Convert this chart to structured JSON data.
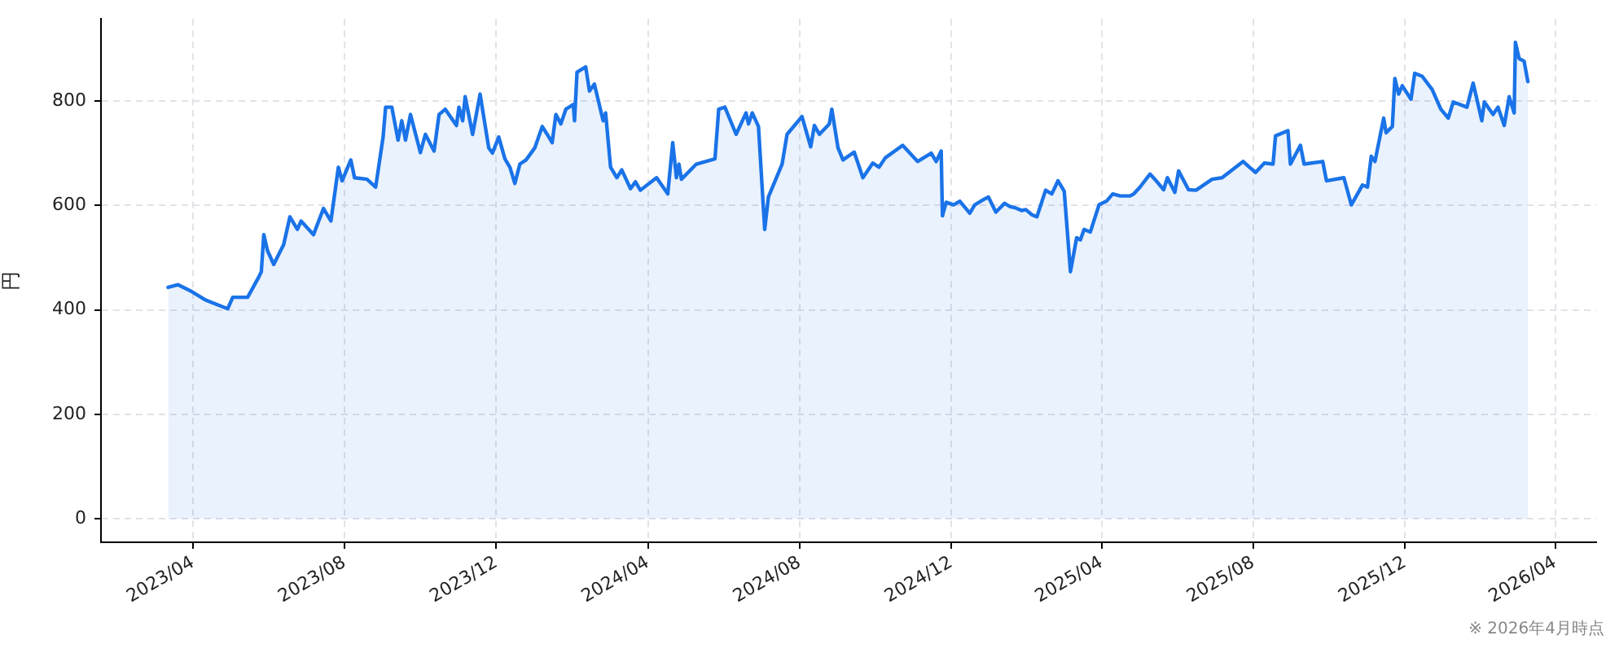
{
  "chart_data": {
    "type": "area",
    "ylabel": "円",
    "color": "#1a73e8",
    "x": [
      "2023-03-12",
      "2023-03-20",
      "2023-03-31",
      "2023-04-11",
      "2023-04-29",
      "2023-05-03",
      "2023-05-15",
      "2023-05-24",
      "2023-05-26",
      "2023-05-28",
      "2023-05-31",
      "2023-06-05",
      "2023-06-13",
      "2023-06-18",
      "2023-06-24",
      "2023-06-27",
      "2023-07-07",
      "2023-07-15",
      "2023-07-21",
      "2023-07-27",
      "2023-07-30",
      "2023-08-06",
      "2023-08-09",
      "2023-08-19",
      "2023-08-26",
      "2023-09-01",
      "2023-09-03",
      "2023-09-08",
      "2023-09-13",
      "2023-09-16",
      "2023-09-19",
      "2023-09-23",
      "2023-10-01",
      "2023-10-05",
      "2023-10-12",
      "2023-10-16",
      "2023-10-21",
      "2023-10-30",
      "2023-11-01",
      "2023-11-04",
      "2023-11-06",
      "2023-11-12",
      "2023-11-18",
      "2023-11-25",
      "2023-11-28",
      "2023-12-03",
      "2023-12-08",
      "2023-12-12",
      "2023-12-16",
      "2023-12-20",
      "2023-12-25",
      "2024-01-01",
      "2024-01-07",
      "2024-01-11",
      "2024-01-15",
      "2024-01-18",
      "2024-01-22",
      "2024-01-26",
      "2024-02-01",
      "2024-02-02",
      "2024-02-04",
      "2024-02-11",
      "2024-02-14",
      "2024-02-18",
      "2024-02-25",
      "2024-02-27",
      "2024-03-02",
      "2024-03-07",
      "2024-03-11",
      "2024-03-18",
      "2024-03-22",
      "2024-03-26",
      "2024-04-08",
      "2024-04-17",
      "2024-04-21",
      "2024-04-24",
      "2024-04-26",
      "2024-04-28",
      "2024-05-10",
      "2024-05-25",
      "2024-05-28",
      "2024-06-02",
      "2024-06-11",
      "2024-06-19",
      "2024-06-21",
      "2024-06-24",
      "2024-06-29",
      "2024-07-04",
      "2024-07-07",
      "2024-07-18",
      "2024-07-22",
      "2024-08-03",
      "2024-08-10",
      "2024-08-13",
      "2024-08-17",
      "2024-08-25",
      "2024-08-27",
      "2024-09-01",
      "2024-09-05",
      "2024-09-14",
      "2024-09-21",
      "2024-09-29",
      "2024-10-04",
      "2024-10-09",
      "2024-10-23",
      "2024-11-04",
      "2024-11-15",
      "2024-11-19",
      "2024-11-23",
      "2024-11-24",
      "2024-11-27",
      "2024-12-03",
      "2024-12-08",
      "2024-12-16",
      "2024-12-20",
      "2024-12-27",
      "2024-12-31",
      "2025-01-06",
      "2025-01-13",
      "2025-01-17",
      "2025-01-22",
      "2025-01-27",
      "2025-01-30",
      "2025-02-04",
      "2025-02-08",
      "2025-02-15",
      "2025-02-20",
      "2025-02-25",
      "2025-03-02",
      "2025-03-07",
      "2025-03-12",
      "2025-03-15",
      "2025-03-18",
      "2025-03-23",
      "2025-03-30",
      "2025-04-05",
      "2025-04-10",
      "2025-04-16",
      "2025-04-24",
      "2025-04-27",
      "2025-05-02",
      "2025-05-10",
      "2025-05-15",
      "2025-05-21",
      "2025-05-24",
      "2025-05-30",
      "2025-06-02",
      "2025-06-10",
      "2025-06-16",
      "2025-06-29",
      "2025-07-07",
      "2025-07-24",
      "2025-07-29",
      "2025-08-03",
      "2025-08-10",
      "2025-08-17",
      "2025-08-19",
      "2025-08-29",
      "2025-08-31",
      "2025-09-08",
      "2025-09-11",
      "2025-09-26",
      "2025-09-29",
      "2025-10-13",
      "2025-10-19",
      "2025-10-28",
      "2025-11-01",
      "2025-11-04",
      "2025-11-07",
      "2025-11-14",
      "2025-11-16",
      "2025-11-21",
      "2025-11-23",
      "2025-11-26",
      "2025-11-29",
      "2025-12-06",
      "2025-12-09",
      "2025-12-15",
      "2025-12-23",
      "2025-12-30",
      "2026-01-05",
      "2026-01-09",
      "2026-01-20",
      "2026-01-25",
      "2026-02-01",
      "2026-02-03",
      "2026-02-10",
      "2026-02-14",
      "2026-02-19",
      "2026-02-23",
      "2026-02-27",
      "2026-02-28",
      "2026-03-03",
      "2026-03-07",
      "2026-03-10"
    ],
    "values": [
      443,
      448,
      435,
      419,
      402,
      424,
      424,
      463,
      473,
      544,
      513,
      487,
      525,
      578,
      554,
      570,
      544,
      594,
      570,
      673,
      647,
      687,
      653,
      650,
      635,
      731,
      788,
      788,
      725,
      762,
      725,
      774,
      701,
      736,
      704,
      774,
      784,
      753,
      788,
      762,
      808,
      736,
      813,
      710,
      700,
      731,
      689,
      673,
      642,
      679,
      687,
      710,
      751,
      736,
      720,
      774,
      756,
      784,
      793,
      762,
      855,
      865,
      819,
      832,
      762,
      777,
      673,
      653,
      668,
      632,
      645,
      629,
      653,
      622,
      720,
      653,
      679,
      650,
      679,
      689,
      784,
      788,
      736,
      777,
      756,
      777,
      751,
      554,
      616,
      679,
      736,
      770,
      712,
      753,
      736,
      756,
      784,
      710,
      687,
      702,
      653,
      681,
      673,
      691,
      715,
      684,
      700,
      684,
      704,
      580,
      606,
      601,
      608,
      585,
      601,
      611,
      616,
      587,
      604,
      598,
      595,
      590,
      592,
      582,
      578,
      629,
      622,
      647,
      627,
      473,
      538,
      534,
      554,
      549,
      601,
      608,
      622,
      618,
      618,
      622,
      635,
      660,
      647,
      630,
      653,
      625,
      666,
      630,
      629,
      650,
      653,
      684,
      673,
      663,
      681,
      679,
      733,
      743,
      679,
      715,
      679,
      684,
      647,
      653,
      601,
      639,
      635,
      694,
      684,
      767,
      739,
      751,
      843,
      813,
      829,
      803,
      853,
      847,
      822,
      784,
      767,
      798,
      788,
      834,
      762,
      798,
      774,
      788,
      753,
      808,
      777,
      912,
      881,
      876,
      837
    ],
    "xlim": [
      "2023-01-17",
      "2026-05-04"
    ],
    "xticks": [
      {
        "value": "2023-04",
        "label": "2023/04"
      },
      {
        "value": "2023-08",
        "label": "2023/08"
      },
      {
        "value": "2023-12",
        "label": "2023/12"
      },
      {
        "value": "2024-04",
        "label": "2024/04"
      },
      {
        "value": "2024-08",
        "label": "2024/08"
      },
      {
        "value": "2024-12",
        "label": "2024/12"
      },
      {
        "value": "2025-04",
        "label": "2025/04"
      },
      {
        "value": "2025-08",
        "label": "2025/08"
      },
      {
        "value": "2025-12",
        "label": "2025/12"
      },
      {
        "value": "2026-04",
        "label": "2026/04"
      }
    ],
    "ylim": [
      -45,
      957
    ],
    "yticks": [
      0,
      200,
      400,
      600,
      800
    ],
    "grid": true,
    "annotations": [
      "※ 2026年4月時点"
    ]
  }
}
